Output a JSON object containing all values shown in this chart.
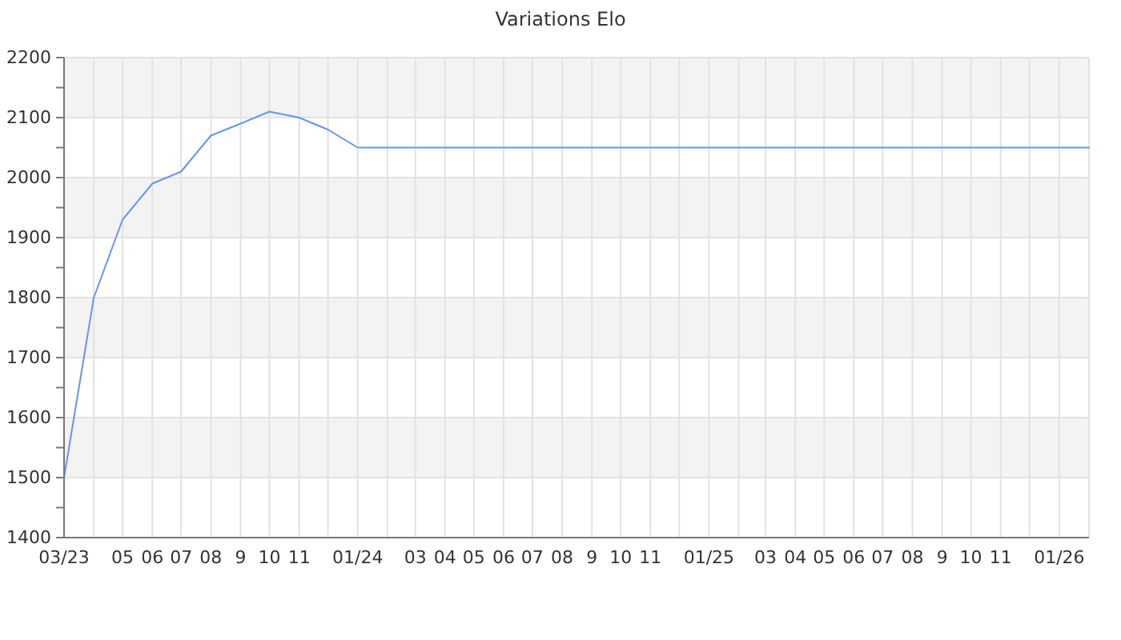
{
  "chart_data": {
    "type": "line",
    "title": "Variations Elo",
    "x": [
      "2023-03",
      "2023-04",
      "2023-05",
      "2023-06",
      "2023-07",
      "2023-08",
      "2023-09",
      "2023-10",
      "2023-11",
      "2023-12",
      "2024-01",
      "2024-02",
      "2024-03",
      "2024-04",
      "2024-05",
      "2024-06",
      "2024-07",
      "2024-08",
      "2024-09",
      "2024-10",
      "2024-11",
      "2024-12",
      "2025-01",
      "2025-02",
      "2025-03",
      "2025-04",
      "2025-05",
      "2025-06",
      "2025-07",
      "2025-08",
      "2025-09",
      "2025-10",
      "2025-11",
      "2025-12",
      "2026-01",
      "2026-02"
    ],
    "series": [
      {
        "color": "#6495ed",
        "values": [
          1500,
          1800,
          1930,
          1990,
          2010,
          2070,
          2090,
          2110,
          2100,
          2080,
          2050,
          2050,
          2050,
          2050,
          2050,
          2050,
          2050,
          2050,
          2050,
          2050,
          2050,
          2050,
          2050,
          2050,
          2050,
          2050,
          2050,
          2050,
          2050,
          2050,
          2050,
          2050,
          2050,
          2050,
          2050,
          2050
        ]
      }
    ],
    "xlim": [
      "2023-03",
      "2026-02"
    ],
    "xticks": [
      {
        "value": "2023-03",
        "label": "03/23"
      },
      {
        "value": "2023-04",
        "label": null
      },
      {
        "value": "2023-05",
        "label": "05"
      },
      {
        "value": "2023-06",
        "label": "06"
      },
      {
        "value": "2023-07",
        "label": "07"
      },
      {
        "value": "2023-08",
        "label": "08"
      },
      {
        "value": "2023-09",
        "label": "9"
      },
      {
        "value": "2023-10",
        "label": "10"
      },
      {
        "value": "2023-11",
        "label": "11"
      },
      {
        "value": "2023-12",
        "label": null
      },
      {
        "value": "2024-01",
        "label": "01/24"
      },
      {
        "value": "2024-02",
        "label": null
      },
      {
        "value": "2024-03",
        "label": "03"
      },
      {
        "value": "2024-04",
        "label": "04"
      },
      {
        "value": "2024-05",
        "label": "05"
      },
      {
        "value": "2024-06",
        "label": "06"
      },
      {
        "value": "2024-07",
        "label": "07"
      },
      {
        "value": "2024-08",
        "label": "08"
      },
      {
        "value": "2024-09",
        "label": "9"
      },
      {
        "value": "2024-10",
        "label": "10"
      },
      {
        "value": "2024-11",
        "label": "11"
      },
      {
        "value": "2024-12",
        "label": null
      },
      {
        "value": "2025-01",
        "label": "01/25"
      },
      {
        "value": "2025-02",
        "label": null
      },
      {
        "value": "2025-03",
        "label": "03"
      },
      {
        "value": "2025-04",
        "label": "04"
      },
      {
        "value": "2025-05",
        "label": "05"
      },
      {
        "value": "2025-06",
        "label": "06"
      },
      {
        "value": "2025-07",
        "label": "07"
      },
      {
        "value": "2025-08",
        "label": "08"
      },
      {
        "value": "2025-09",
        "label": "9"
      },
      {
        "value": "2025-10",
        "label": "10"
      },
      {
        "value": "2025-11",
        "label": "11"
      },
      {
        "value": "2025-12",
        "label": null
      },
      {
        "value": "2026-01",
        "label": "01/26"
      },
      {
        "value": "2026-02",
        "label": null
      }
    ],
    "ylim": [
      1400,
      2200
    ],
    "yticks": [
      1400,
      {
        "value": 1450,
        "label": null
      },
      1500,
      {
        "value": 1550,
        "label": null
      },
      1600,
      {
        "value": 1650,
        "label": null
      },
      1700,
      {
        "value": 1750,
        "label": null
      },
      1800,
      {
        "value": 1850,
        "label": null
      },
      1900,
      {
        "value": 1950,
        "label": null
      },
      2000,
      {
        "value": 2050,
        "label": null
      },
      2100,
      {
        "value": 2150,
        "label": null
      },
      2200
    ],
    "grid": true,
    "marker": "none",
    "line_style": "solid"
  }
}
